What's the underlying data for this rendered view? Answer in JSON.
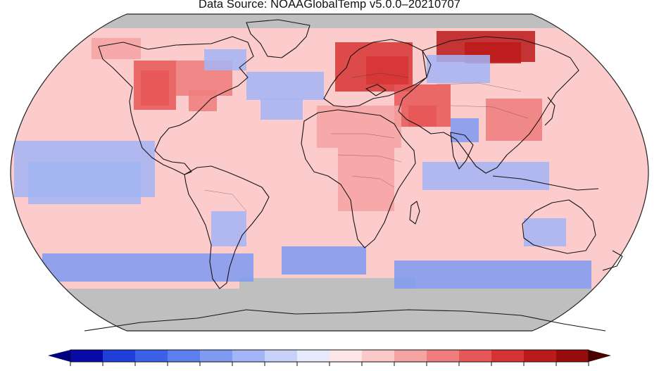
{
  "title": "Data Source: NOAAGlobalTemp v5.0.0–20210707",
  "colors": {
    "missing": "#bfbfbf",
    "ocean_base": "#fccbcb",
    "border": "#1a1a1a"
  },
  "colorbar": {
    "segments": [
      "#0a0aa8",
      "#1f3fd8",
      "#3b62e6",
      "#5b7fee",
      "#7e9af2",
      "#a3b5f6",
      "#c7d1f9",
      "#e6eafc",
      "#fde6e6",
      "#fbc8c8",
      "#f6a3a3",
      "#ef7d7d",
      "#e65757",
      "#d63434",
      "#bb1a1a",
      "#960b0b"
    ],
    "low_extend_color": "#000080",
    "high_extend_color": "#4a0000"
  },
  "anomaly_regions": [
    {
      "name": "alaska",
      "level": 2
    },
    {
      "name": "north-america-west",
      "level": 4
    },
    {
      "name": "north-america-east",
      "level": 3
    },
    {
      "name": "greenland-south",
      "level": -2
    },
    {
      "name": "atlantic-north-cold",
      "level": -2
    },
    {
      "name": "europe",
      "level": 5
    },
    {
      "name": "siberia",
      "level": 6
    },
    {
      "name": "central-asia-cold",
      "level": -2
    },
    {
      "name": "middle-east",
      "level": 4
    },
    {
      "name": "china",
      "level": 3
    },
    {
      "name": "india-cold",
      "level": -3
    },
    {
      "name": "africa",
      "level": 2
    },
    {
      "name": "pacific-equatorial-cold",
      "level": -2
    },
    {
      "name": "south-america-cold",
      "level": -2
    },
    {
      "name": "southern-ocean-cold",
      "level": -3
    },
    {
      "name": "australia-cold",
      "level": -2
    }
  ]
}
